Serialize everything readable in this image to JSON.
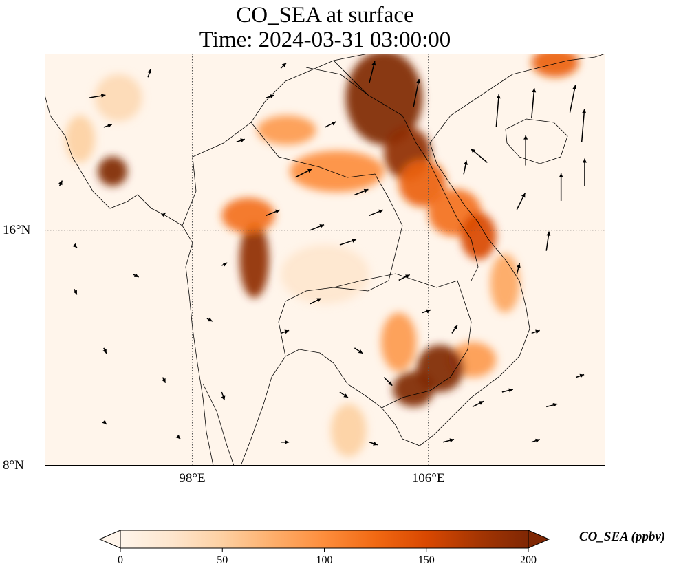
{
  "title": {
    "line1": "CO_SEA at surface",
    "line2": "Time: 2024-03-31 03:00:00"
  },
  "map": {
    "lon_range": [
      93,
      112
    ],
    "lat_range": [
      8,
      22
    ],
    "gridline_lons": [
      98,
      106
    ],
    "gridline_lats": [
      8,
      16
    ],
    "x_ticks": [
      {
        "lon": 98,
        "label": "98°E"
      },
      {
        "lon": 106,
        "label": "106°E"
      }
    ],
    "y_ticks": [
      {
        "lat": 16,
        "label": "16°N"
      },
      {
        "lat": 8,
        "label": "8°N"
      }
    ]
  },
  "colorbar": {
    "label": "CO_SEA (ppbv)",
    "min": 0,
    "max": 200,
    "ticks": [
      {
        "value": 0,
        "label": "0"
      },
      {
        "value": 50,
        "label": "50"
      },
      {
        "value": 100,
        "label": "100"
      },
      {
        "value": 150,
        "label": "150"
      },
      {
        "value": 200,
        "label": "200"
      }
    ],
    "colors": [
      "#fff5eb",
      "#fee6ce",
      "#fdd0a2",
      "#fdae6b",
      "#fd8d3c",
      "#f16913",
      "#d94801",
      "#a63603",
      "#7f2704"
    ],
    "extend": "both"
  },
  "plumes": [
    {
      "lon": 104.5,
      "lat": 20.5,
      "rlon": 1.3,
      "rlat": 1.6,
      "value": 210
    },
    {
      "lon": 105.3,
      "lat": 18.6,
      "rlon": 0.8,
      "rlat": 0.9,
      "value": 190
    },
    {
      "lon": 105.8,
      "lat": 17.6,
      "rlon": 0.8,
      "rlat": 0.8,
      "value": 130
    },
    {
      "lon": 106.9,
      "lat": 16.6,
      "rlon": 0.9,
      "rlat": 0.8,
      "value": 120
    },
    {
      "lon": 107.7,
      "lat": 15.8,
      "rlon": 0.6,
      "rlat": 0.8,
      "value": 150
    },
    {
      "lon": 108.6,
      "lat": 14.2,
      "rlon": 0.5,
      "rlat": 1.0,
      "value": 80
    },
    {
      "lon": 107.5,
      "lat": 11.6,
      "rlon": 0.8,
      "rlat": 0.6,
      "value": 90
    },
    {
      "lon": 105.5,
      "lat": 10.6,
      "rlon": 0.7,
      "rlat": 0.6,
      "value": 210
    },
    {
      "lon": 106.4,
      "lat": 11.3,
      "rlon": 0.8,
      "rlat": 0.8,
      "value": 200
    },
    {
      "lon": 105.0,
      "lat": 12.2,
      "rlon": 0.6,
      "rlat": 1.0,
      "value": 90
    },
    {
      "lon": 100.1,
      "lat": 15.0,
      "rlon": 0.5,
      "rlat": 1.3,
      "value": 190
    },
    {
      "lon": 99.9,
      "lat": 16.5,
      "rlon": 0.9,
      "rlat": 0.6,
      "value": 120
    },
    {
      "lon": 102.9,
      "lat": 18.0,
      "rlon": 1.6,
      "rlat": 0.7,
      "value": 100
    },
    {
      "lon": 101.2,
      "lat": 19.4,
      "rlon": 1.0,
      "rlat": 0.5,
      "value": 90
    },
    {
      "lon": 95.3,
      "lat": 18.0,
      "rlon": 0.5,
      "rlat": 0.5,
      "value": 200
    },
    {
      "lon": 94.2,
      "lat": 19.1,
      "rlon": 0.5,
      "rlat": 0.8,
      "value": 50
    },
    {
      "lon": 95.5,
      "lat": 20.5,
      "rlon": 0.8,
      "rlat": 0.8,
      "value": 40
    },
    {
      "lon": 110.3,
      "lat": 21.7,
      "rlon": 0.8,
      "rlat": 0.5,
      "value": 130
    },
    {
      "lon": 103.3,
      "lat": 9.2,
      "rlon": 0.6,
      "rlat": 0.9,
      "value": 50
    },
    {
      "lon": 102.5,
      "lat": 14.5,
      "rlon": 1.5,
      "rlat": 1.0,
      "value": 25
    }
  ],
  "wind_vectors": [
    {
      "lon": 104.0,
      "lat": 21.0,
      "u": 0.2,
      "v": 0.8
    },
    {
      "lon": 105.5,
      "lat": 20.2,
      "u": 0.2,
      "v": 1.0
    },
    {
      "lon": 108.3,
      "lat": 19.5,
      "u": 0.1,
      "v": 1.2
    },
    {
      "lon": 109.5,
      "lat": 19.8,
      "u": 0.1,
      "v": 1.1
    },
    {
      "lon": 110.8,
      "lat": 20.0,
      "u": 0.2,
      "v": 1.0
    },
    {
      "lon": 111.2,
      "lat": 19.0,
      "u": 0.1,
      "v": 1.2
    },
    {
      "lon": 109.3,
      "lat": 18.2,
      "u": 0.0,
      "v": 1.1
    },
    {
      "lon": 110.5,
      "lat": 17.0,
      "u": 0.0,
      "v": 1.0
    },
    {
      "lon": 111.3,
      "lat": 17.5,
      "u": 0.0,
      "v": 1.0
    },
    {
      "lon": 110.0,
      "lat": 15.3,
      "u": 0.1,
      "v": 0.7
    },
    {
      "lon": 109.0,
      "lat": 16.7,
      "u": 0.3,
      "v": 0.6
    },
    {
      "lon": 108.0,
      "lat": 18.3,
      "u": -0.6,
      "v": 0.5
    },
    {
      "lon": 107.2,
      "lat": 17.9,
      "u": 0.1,
      "v": 0.5
    },
    {
      "lon": 109.0,
      "lat": 14.5,
      "u": 0.1,
      "v": 0.4
    },
    {
      "lon": 100.5,
      "lat": 16.5,
      "u": 0.5,
      "v": 0.2
    },
    {
      "lon": 101.5,
      "lat": 17.8,
      "u": 0.6,
      "v": 0.3
    },
    {
      "lon": 102.0,
      "lat": 16.0,
      "u": 0.5,
      "v": 0.2
    },
    {
      "lon": 103.0,
      "lat": 15.5,
      "u": 0.6,
      "v": 0.2
    },
    {
      "lon": 104.0,
      "lat": 16.5,
      "u": 0.5,
      "v": 0.2
    },
    {
      "lon": 103.5,
      "lat": 17.2,
      "u": 0.5,
      "v": 0.2
    },
    {
      "lon": 105.0,
      "lat": 14.3,
      "u": 0.4,
      "v": 0.2
    },
    {
      "lon": 102.0,
      "lat": 13.5,
      "u": 0.4,
      "v": 0.2
    },
    {
      "lon": 101.0,
      "lat": 12.5,
      "u": 0.3,
      "v": 0.1
    },
    {
      "lon": 103.5,
      "lat": 12.0,
      "u": 0.3,
      "v": -0.2
    },
    {
      "lon": 104.5,
      "lat": 11.0,
      "u": 0.3,
      "v": -0.3
    },
    {
      "lon": 103.0,
      "lat": 10.5,
      "u": 0.3,
      "v": -0.2
    },
    {
      "lon": 107.5,
      "lat": 10.0,
      "u": 0.4,
      "v": 0.2
    },
    {
      "lon": 108.5,
      "lat": 10.5,
      "u": 0.4,
      "v": 0.1
    },
    {
      "lon": 110.0,
      "lat": 10.0,
      "u": 0.4,
      "v": 0.1
    },
    {
      "lon": 111.0,
      "lat": 11.0,
      "u": 0.3,
      "v": 0.1
    },
    {
      "lon": 109.5,
      "lat": 12.5,
      "u": 0.3,
      "v": 0.1
    },
    {
      "lon": 106.5,
      "lat": 8.8,
      "u": 0.4,
      "v": 0.1
    },
    {
      "lon": 109.5,
      "lat": 8.8,
      "u": 0.3,
      "v": 0.1
    },
    {
      "lon": 104.0,
      "lat": 8.8,
      "u": 0.3,
      "v": -0.1
    },
    {
      "lon": 101.0,
      "lat": 8.8,
      "u": 0.3,
      "v": 0.0
    },
    {
      "lon": 99.0,
      "lat": 10.5,
      "u": 0.1,
      "v": -0.3
    },
    {
      "lon": 97.0,
      "lat": 11.0,
      "u": 0.1,
      "v": -0.2
    },
    {
      "lon": 95.0,
      "lat": 12.0,
      "u": 0.1,
      "v": -0.2
    },
    {
      "lon": 94.0,
      "lat": 14.0,
      "u": 0.1,
      "v": -0.2
    },
    {
      "lon": 96.0,
      "lat": 14.5,
      "u": 0.2,
      "v": -0.1
    },
    {
      "lon": 98.5,
      "lat": 13.0,
      "u": 0.2,
      "v": -0.1
    },
    {
      "lon": 95.0,
      "lat": 9.5,
      "u": 0.1,
      "v": -0.1
    },
    {
      "lon": 97.5,
      "lat": 9.0,
      "u": 0.1,
      "v": -0.1
    },
    {
      "lon": 99.0,
      "lat": 14.8,
      "u": 0.2,
      "v": 0.1
    },
    {
      "lon": 97.0,
      "lat": 16.5,
      "u": 0.1,
      "v": 0.1
    },
    {
      "lon": 94.5,
      "lat": 20.5,
      "u": 0.6,
      "v": 0.1
    },
    {
      "lon": 95.0,
      "lat": 19.5,
      "u": 0.3,
      "v": 0.1
    },
    {
      "lon": 96.5,
      "lat": 21.2,
      "u": 0.1,
      "v": 0.3
    },
    {
      "lon": 99.5,
      "lat": 19.0,
      "u": 0.3,
      "v": 0.1
    },
    {
      "lon": 100.5,
      "lat": 20.5,
      "u": 0.3,
      "v": 0.1
    },
    {
      "lon": 102.5,
      "lat": 19.5,
      "u": 0.4,
      "v": 0.2
    },
    {
      "lon": 101.0,
      "lat": 21.5,
      "u": 0.2,
      "v": 0.2
    },
    {
      "lon": 93.5,
      "lat": 17.5,
      "u": 0.1,
      "v": 0.2
    },
    {
      "lon": 94.0,
      "lat": 15.5,
      "u": 0.1,
      "v": -0.1
    },
    {
      "lon": 105.8,
      "lat": 13.2,
      "u": 0.3,
      "v": 0.1
    },
    {
      "lon": 106.8,
      "lat": 12.5,
      "u": 0.2,
      "v": 0.3
    }
  ]
}
